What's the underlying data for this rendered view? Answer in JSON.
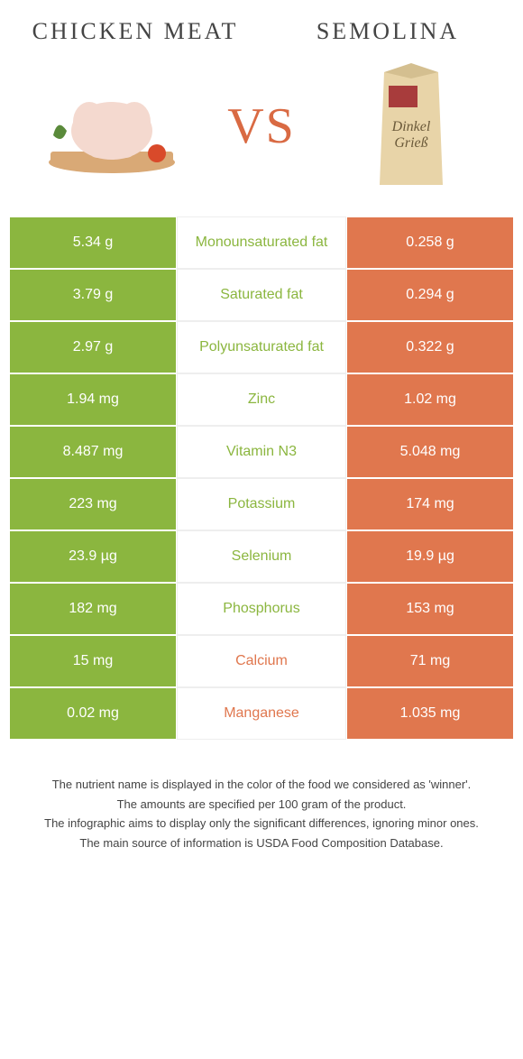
{
  "header": {
    "left_title": "Chicken meat",
    "right_title": "Semolina",
    "vs_label": "VS"
  },
  "colors": {
    "left_bg": "#8bb63f",
    "right_bg": "#e0774e",
    "left_text": "#ffffff",
    "right_text": "#ffffff",
    "page_bg": "#ffffff"
  },
  "left_image": {
    "kind": "chicken-on-board",
    "board_color": "#d9a976",
    "chicken_color": "#f4d9cf",
    "garnish_green": "#5a8a3a",
    "tomato_color": "#d94a2a"
  },
  "right_image": {
    "kind": "flour-bag",
    "bag_color": "#e8d4a8",
    "label_color": "#a83c3c",
    "label_line1": "Dinkel",
    "label_line2": "Grieß"
  },
  "rows": [
    {
      "left": "5.34 g",
      "nutrient": "Monounsaturated fat",
      "right": "0.258 g",
      "winner": "left"
    },
    {
      "left": "3.79 g",
      "nutrient": "Saturated fat",
      "right": "0.294 g",
      "winner": "left"
    },
    {
      "left": "2.97 g",
      "nutrient": "Polyunsaturated fat",
      "right": "0.322 g",
      "winner": "left"
    },
    {
      "left": "1.94 mg",
      "nutrient": "Zinc",
      "right": "1.02 mg",
      "winner": "left"
    },
    {
      "left": "8.487 mg",
      "nutrient": "Vitamin N3",
      "right": "5.048 mg",
      "winner": "left"
    },
    {
      "left": "223 mg",
      "nutrient": "Potassium",
      "right": "174 mg",
      "winner": "left"
    },
    {
      "left": "23.9 µg",
      "nutrient": "Selenium",
      "right": "19.9 µg",
      "winner": "left"
    },
    {
      "left": "182 mg",
      "nutrient": "Phosphorus",
      "right": "153 mg",
      "winner": "left"
    },
    {
      "left": "15 mg",
      "nutrient": "Calcium",
      "right": "71 mg",
      "winner": "right"
    },
    {
      "left": "0.02 mg",
      "nutrient": "Manganese",
      "right": "1.035 mg",
      "winner": "right"
    }
  ],
  "footnotes": [
    "The nutrient name is displayed in the color of the food we considered as 'winner'.",
    "The amounts are specified per 100 gram of the product.",
    "The infographic aims to display only the significant differences, ignoring minor ones.",
    "The main source of information is USDA Food Composition Database."
  ]
}
